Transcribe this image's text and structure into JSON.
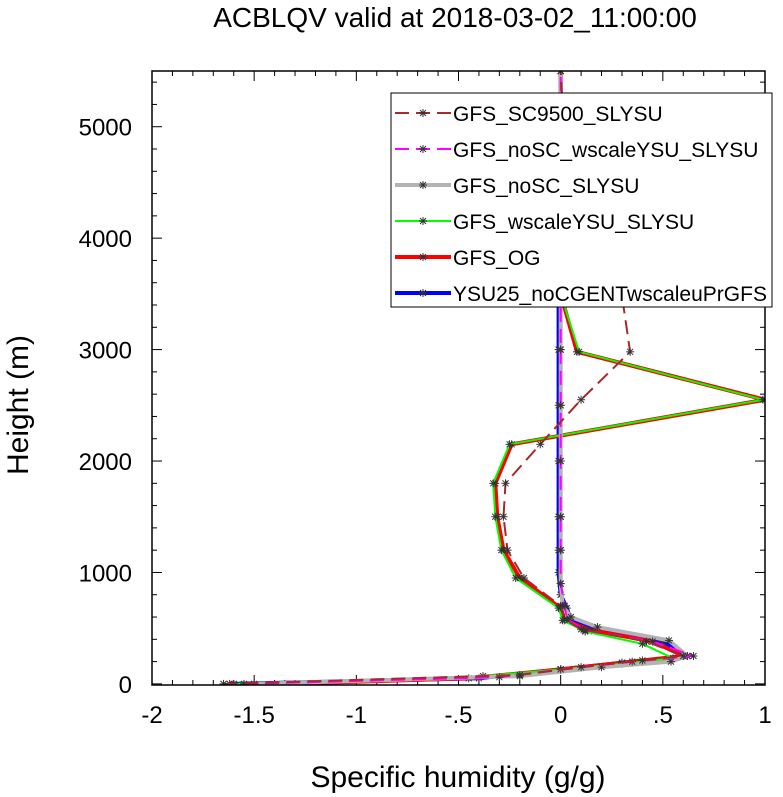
{
  "chart_data": {
    "type": "line",
    "title": "ACBLQV valid at 2018-03-02_11:00:00",
    "xlabel": "Specific humidity (g/g)",
    "ylabel": "Height (m)",
    "xlim": [
      -2,
      1
    ],
    "ylim": [
      -10,
      5500
    ],
    "x_ticks": [
      -2,
      -1.5,
      -1,
      -0.5,
      0,
      0.5,
      1
    ],
    "x_tick_labels": [
      "-2",
      "-1.5",
      "-1",
      "-.5",
      "0",
      ".5",
      "1"
    ],
    "y_ticks": [
      0,
      1000,
      2000,
      3000,
      4000,
      5000
    ],
    "y_tick_labels": [
      "0",
      "1000",
      "2000",
      "3000",
      "4000",
      "5000"
    ],
    "grid": false,
    "legend_position": "top-right",
    "series": [
      {
        "name": "YSU25_noCGENTwscaleuPrGFS",
        "color": "#0000ff",
        "dash": "solid",
        "width": 4,
        "points": [
          [
            -1.62,
            0
          ],
          [
            -0.4,
            50
          ],
          [
            0.0,
            130
          ],
          [
            0.3,
            190
          ],
          [
            0.62,
            250
          ],
          [
            0.5,
            380
          ],
          [
            0.2,
            480
          ],
          [
            0.05,
            570
          ],
          [
            0.03,
            680
          ],
          [
            0.0,
            800
          ],
          [
            -0.01,
            1000
          ],
          [
            -0.01,
            1200
          ],
          [
            -0.01,
            1500
          ],
          [
            -0.01,
            2000
          ],
          [
            -0.01,
            2500
          ],
          [
            -0.01,
            3000
          ],
          [
            -0.01,
            3500
          ],
          [
            0.0,
            4000
          ],
          [
            0.0,
            4500
          ],
          [
            0.0,
            5000
          ],
          [
            0.0,
            5500
          ]
        ]
      },
      {
        "name": "GFS_OG",
        "color": "#ff0000",
        "dash": "solid",
        "width": 4,
        "points": [
          [
            -1.35,
            0
          ],
          [
            -0.45,
            50
          ],
          [
            0.0,
            130
          ],
          [
            0.3,
            190
          ],
          [
            0.6,
            250
          ],
          [
            0.45,
            380
          ],
          [
            0.15,
            480
          ],
          [
            0.02,
            570
          ],
          [
            0.0,
            680
          ],
          [
            -0.2,
            950
          ],
          [
            -0.28,
            1200
          ],
          [
            -0.31,
            1500
          ],
          [
            -0.32,
            1800
          ],
          [
            -0.24,
            2150
          ],
          [
            1.0,
            2550
          ],
          [
            0.08,
            2980
          ],
          [
            0.0,
            3500
          ],
          [
            0.0,
            4000
          ],
          [
            0.0,
            4600
          ],
          [
            0.0,
            5100
          ],
          [
            0.0,
            5500
          ]
        ]
      },
      {
        "name": "GFS_wscaleYSU_SLYSU",
        "color": "#00ff00",
        "dash": "solid",
        "width": 2,
        "points": [
          [
            -1.6,
            0
          ],
          [
            -0.38,
            70
          ],
          [
            0.0,
            130
          ],
          [
            0.3,
            180
          ],
          [
            0.55,
            230
          ],
          [
            0.4,
            360
          ],
          [
            0.12,
            470
          ],
          [
            0.01,
            570
          ],
          [
            -0.01,
            680
          ],
          [
            -0.22,
            950
          ],
          [
            -0.29,
            1200
          ],
          [
            -0.32,
            1500
          ],
          [
            -0.33,
            1800
          ],
          [
            -0.25,
            2150
          ],
          [
            0.99,
            2550
          ],
          [
            0.09,
            2980
          ],
          [
            0.0,
            3500
          ],
          [
            0.0,
            4000
          ],
          [
            0.0,
            4600
          ],
          [
            0.0,
            5100
          ],
          [
            0.0,
            5500
          ]
        ]
      },
      {
        "name": "GFS_noSC_SLYSU",
        "color": "#b3b3b3",
        "dash": "solid",
        "width": 4,
        "points": [
          [
            -1.5,
            0
          ],
          [
            -0.2,
            70
          ],
          [
            0.2,
            150
          ],
          [
            0.54,
            200
          ],
          [
            0.62,
            250
          ],
          [
            0.53,
            390
          ],
          [
            0.18,
            510
          ],
          [
            0.05,
            600
          ],
          [
            0.01,
            700
          ],
          [
            0.0,
            900
          ],
          [
            0.0,
            1200
          ],
          [
            0.0,
            1500
          ],
          [
            0.0,
            2000
          ],
          [
            0.0,
            2500
          ],
          [
            0.0,
            3000
          ],
          [
            0.0,
            3500
          ],
          [
            0.0,
            4000
          ],
          [
            0.0,
            4500
          ],
          [
            0.0,
            5000
          ],
          [
            0.0,
            5500
          ]
        ]
      },
      {
        "name": "GFS_noSC_wscaleYSU_SLYSU",
        "color": "#ff00ff",
        "dash": "dash",
        "width": 2,
        "points": [
          [
            -1.55,
            0
          ],
          [
            -0.3,
            60
          ],
          [
            0.0,
            130
          ],
          [
            0.35,
            200
          ],
          [
            0.65,
            250
          ],
          [
            0.45,
            380
          ],
          [
            0.12,
            480
          ],
          [
            0.03,
            580
          ],
          [
            0.02,
            700
          ],
          [
            0.0,
            900
          ],
          [
            0.0,
            1200
          ],
          [
            0.0,
            1500
          ],
          [
            0.0,
            2000
          ],
          [
            0.0,
            2500
          ],
          [
            0.0,
            3000
          ],
          [
            0.0,
            3500
          ],
          [
            0.0,
            4000
          ],
          [
            0.0,
            4500
          ],
          [
            0.0,
            5000
          ],
          [
            0.0,
            5500
          ]
        ]
      },
      {
        "name": "GFS_SC9500_SLYSU",
        "color": "#a52a2a",
        "dash": "dash",
        "width": 2,
        "points": [
          [
            -1.65,
            0
          ],
          [
            -0.2,
            80
          ],
          [
            0.1,
            150
          ],
          [
            0.4,
            210
          ],
          [
            0.6,
            250
          ],
          [
            0.42,
            380
          ],
          [
            0.1,
            490
          ],
          [
            0.02,
            580
          ],
          [
            0.0,
            700
          ],
          [
            -0.18,
            950
          ],
          [
            -0.26,
            1200
          ],
          [
            -0.28,
            1500
          ],
          [
            -0.27,
            1800
          ],
          [
            -0.1,
            2150
          ],
          [
            0.1,
            2550
          ],
          [
            0.34,
            2980
          ],
          [
            0.3,
            3480
          ],
          [
            0.1,
            4050
          ],
          [
            0.05,
            4600
          ],
          [
            0.01,
            5100
          ],
          [
            0.0,
            5500
          ]
        ]
      }
    ]
  }
}
